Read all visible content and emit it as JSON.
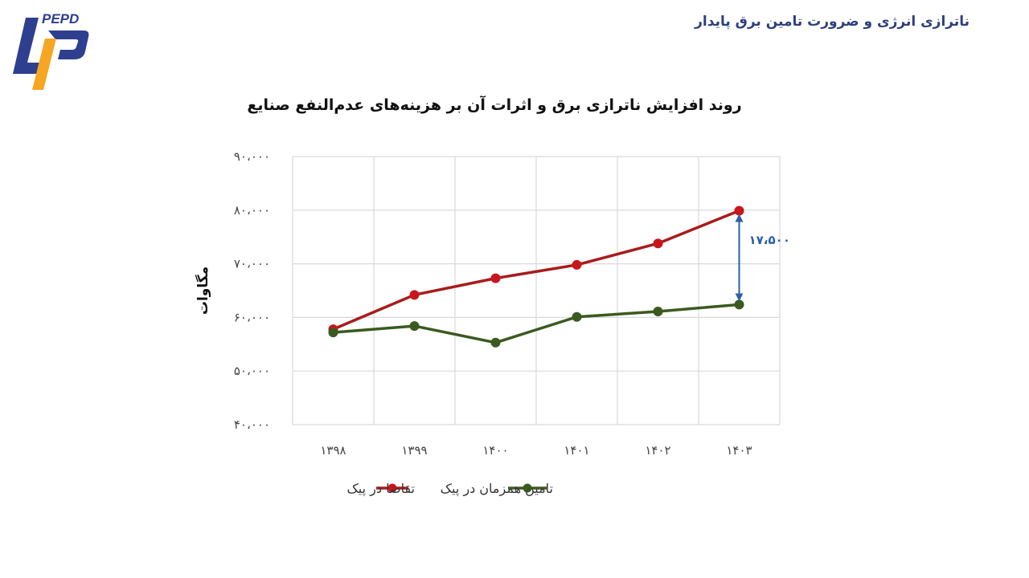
{
  "header": {
    "title": "ناترازی انرژی و ضرورت تامین برق پایدار",
    "logo_text": "PEPD"
  },
  "colors": {
    "demand": "#a81c1c",
    "demand_marker": "#c8161d",
    "supply": "#3a5a1f",
    "supply_marker": "#3a5a1f",
    "annotation": "#2f5fa8",
    "header": "#2e3f7c",
    "logo_blue": "#2e3f8f",
    "logo_orange": "#f5a623"
  },
  "chart_data": {
    "type": "line",
    "title": "روند افزایش ناترازی برق و اثرات آن بر هزینه‌های عدم‌النفع صنایع",
    "xlabel": "",
    "ylabel": "مگاوات",
    "categories": [
      "۱۳۹۸",
      "۱۳۹۹",
      "۱۴۰۰",
      "۱۴۰۱",
      "۱۴۰۲",
      "۱۴۰۳"
    ],
    "y_ticks": [
      40000,
      50000,
      60000,
      70000,
      80000,
      90000
    ],
    "y_tick_labels": [
      "۴۰،۰۰۰",
      "۵۰،۰۰۰",
      "۶۰،۰۰۰",
      "۷۰،۰۰۰",
      "۸۰،۰۰۰",
      "۹۰،۰۰۰"
    ],
    "ylim": [
      40000,
      90000
    ],
    "grid": true,
    "legend_position": "bottom",
    "series": [
      {
        "name": "تقاضا در پیک",
        "color_key": "demand",
        "values": [
          57800,
          64200,
          67300,
          69800,
          73800,
          79900
        ]
      },
      {
        "name": "تامین همزمان در پیک",
        "color_key": "supply",
        "values": [
          57200,
          58400,
          55300,
          60100,
          61100,
          62400
        ]
      }
    ],
    "annotations": [
      {
        "text": "۱۷،۵۰۰",
        "category_index": 5,
        "from": 62400,
        "to": 79900
      }
    ]
  }
}
